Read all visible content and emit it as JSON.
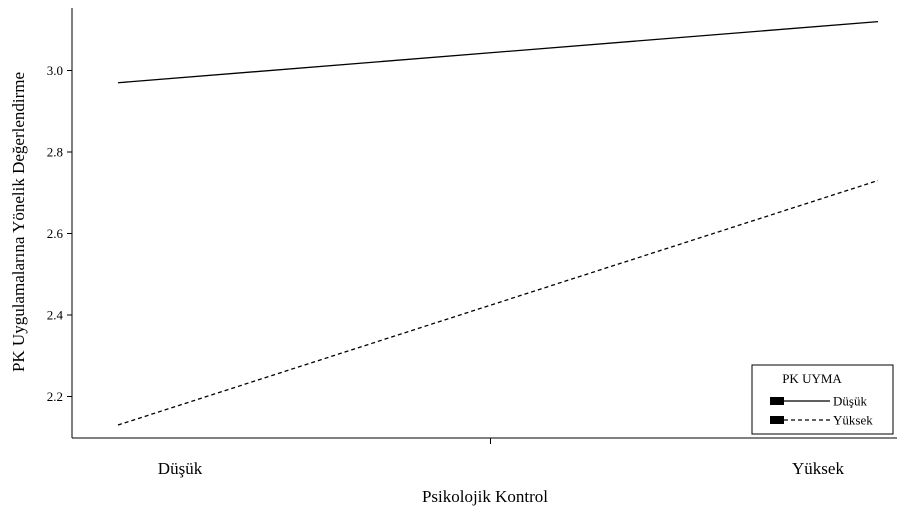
{
  "chart_data": {
    "type": "line",
    "categories": [
      "Düşük",
      "Yüksek"
    ],
    "xlabel": "Psikolojik Kontrol",
    "ylabel": "PK Uygulamalarına Yönelik Değerlendirme",
    "ylim": [
      2.1,
      3.15
    ],
    "yticks": [
      2.2,
      2.4,
      2.6,
      2.8,
      3.0
    ],
    "ytick_labels": [
      "2.2",
      "2.4",
      "2.6",
      "2.8",
      "3.0"
    ],
    "grid": false,
    "legend": {
      "title": "PK UYMA",
      "placement": "bottom-right"
    },
    "series": [
      {
        "name": "Düşük",
        "style": "solid",
        "values": [
          2.97,
          3.12
        ]
      },
      {
        "name": "Yüksek",
        "style": "dashed",
        "values": [
          2.13,
          2.73
        ]
      }
    ]
  }
}
